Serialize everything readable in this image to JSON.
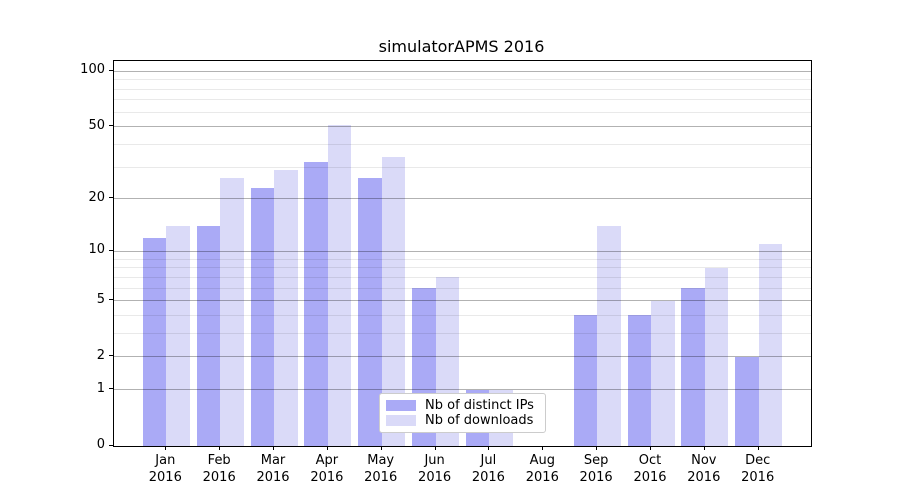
{
  "title": "simulatorAPMS 2016",
  "legend": {
    "items": [
      {
        "label": "Nb of distinct IPs",
        "color": "#aaaaf6"
      },
      {
        "label": "Nb of downloads",
        "color": "#dadaf8"
      }
    ]
  },
  "axes": {
    "y_tick_labels": [
      "0",
      "1",
      "2",
      "5",
      "10",
      "20",
      "50",
      "100"
    ],
    "x_tick_labels": [
      "Jan 2016",
      "Feb 2016",
      "Mar 2016",
      "Apr 2016",
      "May 2016",
      "Jun 2016",
      "Jul 2016",
      "Aug 2016",
      "Sep 2016",
      "Oct 2016",
      "Nov 2016",
      "Dec 2016"
    ]
  },
  "chart_data": {
    "type": "bar",
    "title": "simulatorAPMS 2016",
    "categories": [
      "Jan 2016",
      "Feb 2016",
      "Mar 2016",
      "Apr 2016",
      "May 2016",
      "Jun 2016",
      "Jul 2016",
      "Aug 2016",
      "Sep 2016",
      "Oct 2016",
      "Nov 2016",
      "Dec 2016"
    ],
    "series": [
      {
        "name": "Nb of distinct IPs",
        "color": "#aaaaf6",
        "values": [
          12,
          14,
          23,
          32,
          26,
          6,
          1,
          0,
          4,
          4,
          6,
          2
        ]
      },
      {
        "name": "Nb of downloads",
        "color": "#dadaf8",
        "values": [
          14,
          26,
          29,
          51,
          34,
          7,
          1,
          0,
          14,
          5,
          8,
          11
        ]
      }
    ],
    "xlabel": "",
    "ylabel": "",
    "yscale": "log1p",
    "ylim": [
      0,
      110
    ],
    "yticks_labeled": [
      0,
      1,
      2,
      5,
      10,
      20,
      50,
      100
    ],
    "yticks_minor": [
      3,
      4,
      6,
      7,
      8,
      9,
      30,
      40,
      60,
      70,
      80,
      90
    ],
    "grid": true,
    "grid_above_bars": true,
    "legend_position": "lower center"
  }
}
